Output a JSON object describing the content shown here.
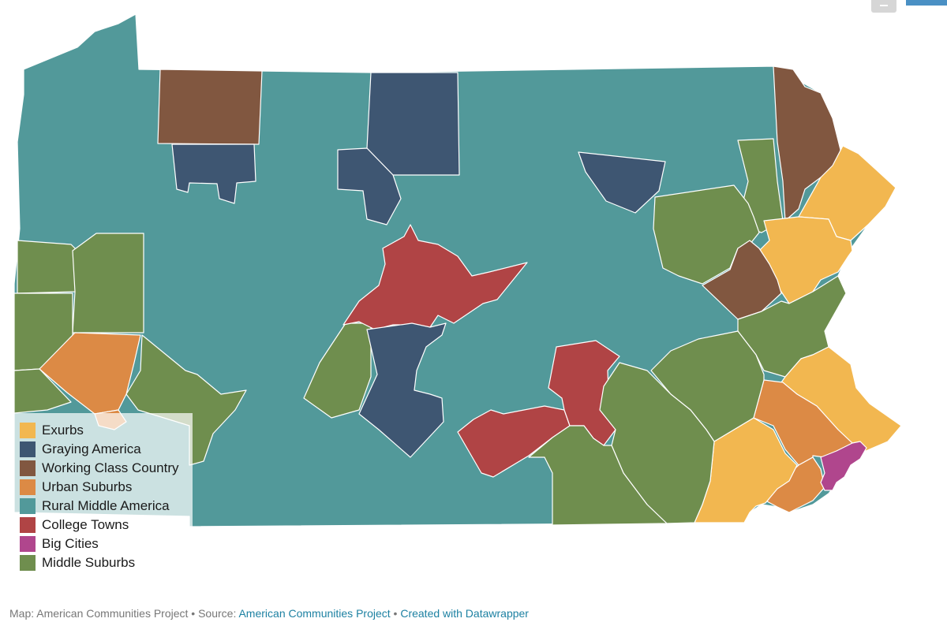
{
  "colors": {
    "exurbs": "#f2b750",
    "graying_america": "#3e5672",
    "working_class_country": "#815740",
    "urban_suburbs": "#dc8a45",
    "rural_middle_america": "#52999a",
    "college_towns": "#b04445",
    "big_cities": "#b0468d",
    "middle_suburbs": "#6f8e4e"
  },
  "legend": {
    "items": [
      {
        "label": "Exurbs",
        "color": "#f2b750"
      },
      {
        "label": "Graying America",
        "color": "#3e5672"
      },
      {
        "label": "Working Class Country",
        "color": "#815740"
      },
      {
        "label": "Urban Suburbs",
        "color": "#dc8a45"
      },
      {
        "label": "Rural Middle America",
        "color": "#52999a"
      },
      {
        "label": "College Towns",
        "color": "#b04445"
      },
      {
        "label": "Big Cities",
        "color": "#b0468d"
      },
      {
        "label": "Middle Suburbs",
        "color": "#6f8e4e"
      }
    ]
  },
  "footer": {
    "prefix": "Map: American Communities Project • Source: ",
    "source_link": "American Communities Project",
    "separator": " • ",
    "credit_link": "Created with Datawrapper"
  }
}
